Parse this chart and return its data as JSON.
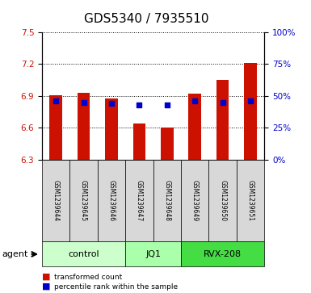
{
  "title": "GDS5340 / 7935510",
  "samples": [
    "GSM1239644",
    "GSM1239645",
    "GSM1239646",
    "GSM1239647",
    "GSM1239648",
    "GSM1239649",
    "GSM1239650",
    "GSM1239651"
  ],
  "transformed_counts": [
    6.91,
    6.93,
    6.88,
    6.64,
    6.6,
    6.92,
    7.05,
    7.21
  ],
  "percentile_ranks": [
    46,
    45,
    44,
    43,
    43,
    46,
    45,
    46
  ],
  "ylim": [
    6.3,
    7.5
  ],
  "yticks": [
    6.3,
    6.6,
    6.9,
    7.2,
    7.5
  ],
  "right_yticks": [
    0,
    25,
    50,
    75,
    100
  ],
  "right_ylim": [
    0,
    100
  ],
  "bar_color": "#cc1100",
  "dot_color": "#0000cc",
  "bar_width": 0.45,
  "groups": [
    {
      "label": "control",
      "indices": [
        0,
        1,
        2
      ],
      "color": "#ccffcc"
    },
    {
      "label": "JQ1",
      "indices": [
        3,
        4
      ],
      "color": "#aaffaa"
    },
    {
      "label": "RVX-208",
      "indices": [
        5,
        6,
        7
      ],
      "color": "#44dd44"
    }
  ],
  "agent_label": "agent",
  "legend_items": [
    {
      "label": "transformed count",
      "color": "#cc1100"
    },
    {
      "label": "percentile rank within the sample",
      "color": "#0000cc"
    }
  ],
  "left_label_color": "#cc1100",
  "right_label_color": "#0000cc",
  "title_fontsize": 11,
  "tick_fontsize": 7.5,
  "sample_fontsize": 5.5,
  "group_fontsize": 8,
  "axis_bg_color": "#d8d8d8",
  "plot_bg_color": "#ffffff"
}
